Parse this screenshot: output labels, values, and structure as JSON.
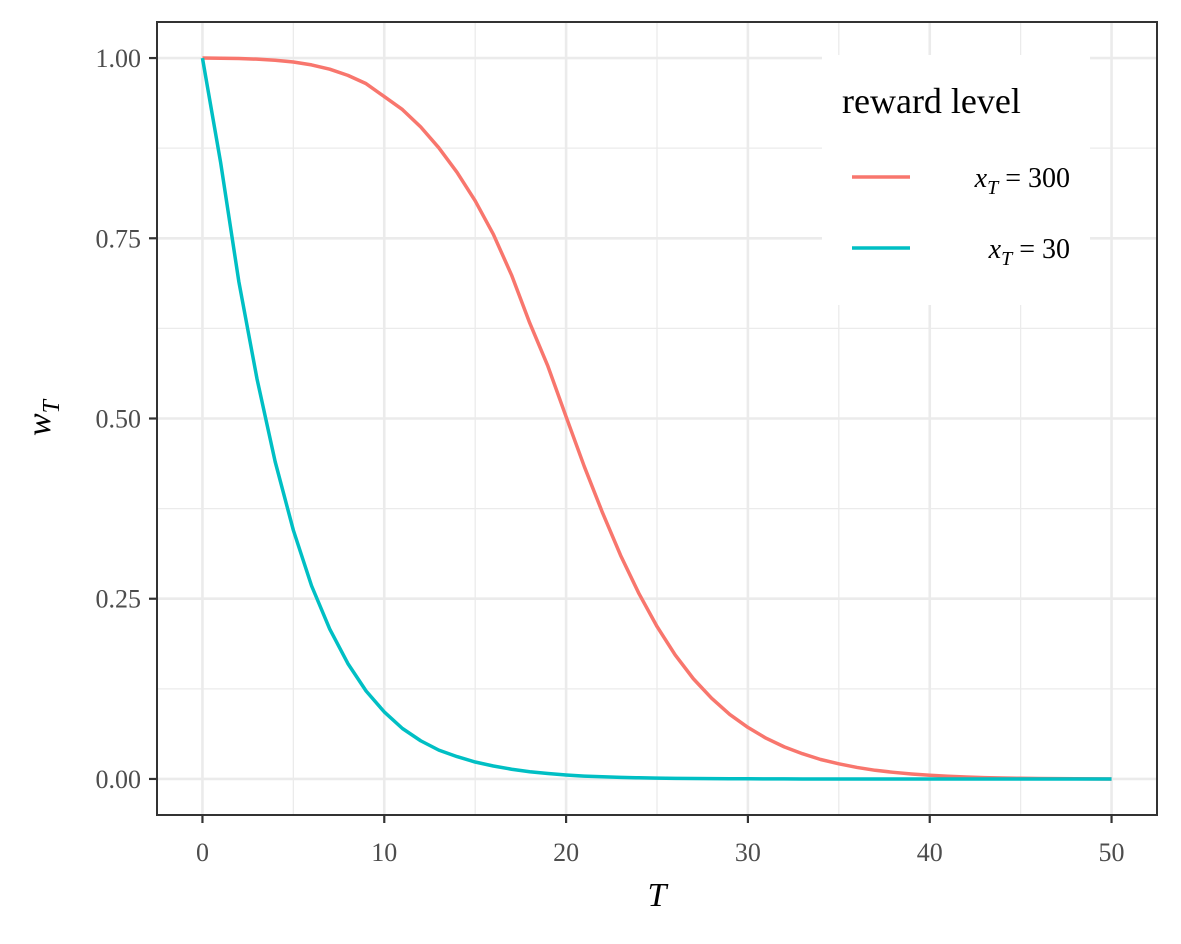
{
  "chart_data": {
    "type": "line",
    "title": "",
    "xlabel": "T",
    "ylabel_main": "w",
    "ylabel_sub": "T",
    "xlim": [
      -2.5,
      52.5
    ],
    "ylim": [
      -0.05,
      1.05
    ],
    "x_ticks": [
      0,
      10,
      20,
      30,
      40,
      50
    ],
    "x_tick_labels": [
      "0",
      "10",
      "20",
      "30",
      "40",
      "50"
    ],
    "y_ticks": [
      0,
      0.25,
      0.5,
      0.75,
      1.0
    ],
    "y_tick_labels": [
      "0.00",
      "0.25",
      "0.50",
      "0.75",
      "1.00"
    ],
    "grid": true,
    "legend": {
      "title": "reward level",
      "position": "top-right",
      "entries": [
        {
          "var": "x",
          "sub": "T",
          "rest": " = 300"
        },
        {
          "var": "x",
          "sub": "T",
          "rest": " = 30"
        }
      ]
    },
    "series": [
      {
        "name": "x_T = 300",
        "color": "#F8766D",
        "x": [
          0,
          1,
          2,
          3,
          4,
          5,
          6,
          7,
          8,
          9,
          10,
          11,
          12,
          13,
          14,
          15,
          16,
          17,
          18,
          19,
          20,
          21,
          22,
          23,
          24,
          25,
          26,
          27,
          28,
          29,
          30,
          31,
          32,
          33,
          34,
          35,
          36,
          37,
          38,
          39,
          40,
          41,
          42,
          43,
          44,
          45,
          46,
          47,
          48,
          49,
          50
        ],
        "values": [
          1.0,
          0.9997,
          0.9993,
          0.9985,
          0.997,
          0.9945,
          0.9905,
          0.9845,
          0.976,
          0.9645,
          0.9465,
          0.9285,
          0.9045,
          0.8755,
          0.8415,
          0.802,
          0.7555,
          0.699,
          0.6325,
          0.5725,
          0.5025,
          0.4335,
          0.3695,
          0.31,
          0.2575,
          0.2115,
          0.172,
          0.139,
          0.112,
          0.0895,
          0.0715,
          0.0565,
          0.0445,
          0.035,
          0.027,
          0.021,
          0.016,
          0.012,
          0.0092,
          0.0069,
          0.0051,
          0.0037,
          0.0027,
          0.0019,
          0.0013,
          0.0009,
          0.0006,
          0.0004,
          0.0002,
          0.0001,
          0.0
        ],
        "label_start_x": 0
      },
      {
        "name": "x_T = 30",
        "color": "#00BFC4",
        "x": [
          0,
          1,
          2,
          3,
          4,
          5,
          6,
          7,
          8,
          9,
          10,
          11,
          12,
          13,
          14,
          15,
          16,
          17,
          18,
          19,
          20,
          21,
          22,
          23,
          24,
          25,
          26,
          27,
          28,
          29,
          30,
          31,
          32,
          33,
          34,
          35,
          36,
          37,
          38,
          39,
          40,
          41,
          42,
          43,
          44,
          45,
          46,
          47,
          48,
          49,
          50
        ],
        "values": [
          1.0,
          0.855,
          0.69,
          0.555,
          0.44,
          0.345,
          0.268,
          0.208,
          0.16,
          0.122,
          0.093,
          0.07,
          0.053,
          0.04,
          0.031,
          0.0235,
          0.018,
          0.0135,
          0.01,
          0.0075,
          0.0055,
          0.004,
          0.003,
          0.0022,
          0.0016,
          0.0011,
          0.0008,
          0.0006,
          0.0004,
          0.0003,
          0.0002,
          0.0001,
          0.0001,
          0.0,
          0.0,
          0.0,
          0.0,
          0.0,
          0.0,
          0.0,
          0.0,
          0.0,
          0.0,
          0.0,
          0.0,
          0.0,
          0.0,
          0.0,
          0.0,
          0.0,
          0.0
        ]
      }
    ]
  }
}
